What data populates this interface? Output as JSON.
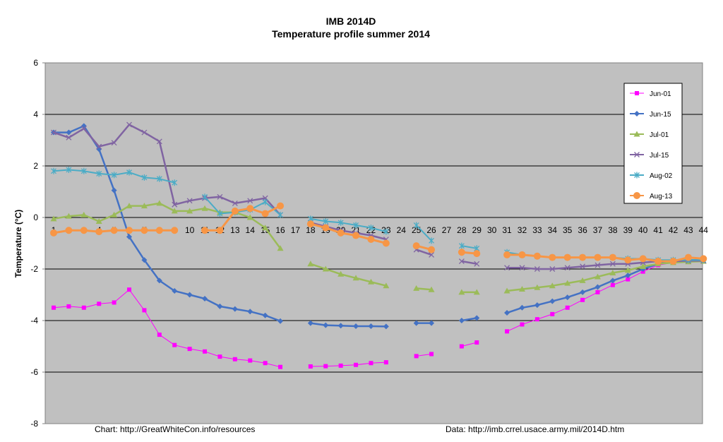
{
  "chart_data": {
    "type": "line",
    "title": "IMB 2014D",
    "subtitle": "Temperature profile summer 2014",
    "ylabel": "Temperature (°C)",
    "ylim": [
      -8,
      6
    ],
    "yticks": [
      6,
      4,
      2,
      0,
      -2,
      -4,
      -6,
      -8
    ],
    "x": [
      1,
      2,
      3,
      4,
      5,
      6,
      7,
      8,
      9,
      10,
      11,
      12,
      13,
      14,
      15,
      16,
      17,
      18,
      19,
      20,
      21,
      22,
      23,
      24,
      25,
      26,
      27,
      28,
      29,
      30,
      31,
      32,
      33,
      34,
      35,
      36,
      37,
      38,
      39,
      40,
      41,
      42,
      43,
      44
    ],
    "grid": true,
    "legend_position": "right",
    "background_color": "#c0c0c0",
    "series": [
      {
        "name": "Jun-01",
        "color": "#ff00ff",
        "marker": "square",
        "values": [
          -3.5,
          -3.45,
          -3.5,
          -3.35,
          -3.3,
          -2.8,
          -3.6,
          -4.55,
          -4.95,
          -5.1,
          -5.2,
          -5.4,
          -5.5,
          -5.55,
          -5.65,
          -5.8,
          null,
          -5.78,
          -5.77,
          -5.75,
          -5.72,
          -5.65,
          -5.62,
          null,
          -5.38,
          -5.3,
          null,
          -5.0,
          -4.85,
          null,
          -4.42,
          -4.15,
          -3.95,
          -3.75,
          -3.5,
          -3.2,
          -2.9,
          -2.62,
          -2.4,
          -2.1,
          -1.85,
          -1.75,
          -1.68,
          -1.65
        ]
      },
      {
        "name": "Jun-15",
        "color": "#4472c4",
        "marker": "diamond",
        "values": [
          3.3,
          3.3,
          3.55,
          2.65,
          1.05,
          -0.75,
          -1.65,
          -2.45,
          -2.85,
          -3.0,
          -3.15,
          -3.45,
          -3.55,
          -3.65,
          -3.8,
          -4.02,
          null,
          -4.1,
          -4.18,
          -4.2,
          -4.22,
          -4.22,
          -4.23,
          null,
          -4.1,
          -4.1,
          null,
          -4.0,
          -3.9,
          null,
          -3.7,
          -3.5,
          -3.4,
          -3.25,
          -3.1,
          -2.9,
          -2.7,
          -2.45,
          -2.25,
          -2.0,
          -1.8,
          -1.7,
          -1.65,
          -1.65
        ]
      },
      {
        "name": "Jul-01",
        "color": "#9bbb59",
        "marker": "triangle",
        "values": [
          -0.05,
          0.05,
          0.1,
          -0.15,
          0.1,
          0.45,
          0.45,
          0.55,
          0.25,
          0.25,
          0.35,
          0.2,
          0.2,
          0.0,
          -0.4,
          -1.2,
          null,
          -1.8,
          -2.0,
          -2.2,
          -2.35,
          -2.5,
          -2.65,
          null,
          -2.75,
          -2.8,
          null,
          -2.9,
          -2.9,
          null,
          -2.85,
          -2.78,
          -2.72,
          -2.65,
          -2.55,
          -2.45,
          -2.3,
          -2.15,
          -2.05,
          -1.9,
          -1.8,
          -1.75,
          -1.72,
          -1.7
        ]
      },
      {
        "name": "Jul-15",
        "color": "#8064a2",
        "marker": "x",
        "values": [
          3.3,
          3.1,
          3.45,
          2.75,
          2.9,
          3.6,
          3.3,
          2.95,
          0.5,
          0.65,
          0.75,
          0.8,
          0.55,
          0.65,
          0.75,
          0.1,
          null,
          -0.2,
          -0.35,
          -0.5,
          -0.6,
          -0.7,
          -0.85,
          null,
          -1.25,
          -1.45,
          null,
          -1.7,
          -1.8,
          null,
          -1.95,
          -1.95,
          -2.0,
          -2.0,
          -1.95,
          -1.9,
          -1.85,
          -1.8,
          -1.8,
          -1.75,
          -1.7,
          -1.7,
          -1.68,
          -1.68
        ]
      },
      {
        "name": "Aug-02",
        "color": "#4bacc6",
        "marker": "star",
        "values": [
          1.8,
          1.85,
          1.8,
          1.7,
          1.65,
          1.75,
          1.55,
          1.5,
          1.35,
          null,
          0.8,
          0.15,
          0.2,
          0.3,
          0.6,
          0.1,
          null,
          -0.05,
          -0.15,
          -0.2,
          -0.3,
          -0.4,
          -0.55,
          null,
          -0.3,
          -0.9,
          null,
          -1.1,
          -1.2,
          null,
          -1.35,
          -1.45,
          -1.5,
          -1.55,
          -1.55,
          -1.55,
          -1.55,
          -1.55,
          -1.6,
          -1.6,
          -1.65,
          -1.65,
          -1.65,
          -1.65
        ]
      },
      {
        "name": "Aug-13",
        "color": "#f79646",
        "marker": "circle",
        "values": [
          -0.6,
          -0.5,
          -0.5,
          -0.55,
          -0.5,
          -0.5,
          -0.5,
          -0.5,
          -0.5,
          null,
          -0.5,
          -0.5,
          0.25,
          0.35,
          0.15,
          0.45,
          null,
          -0.25,
          -0.4,
          -0.6,
          -0.7,
          -0.85,
          -1.0,
          null,
          -1.1,
          -1.25,
          null,
          -1.35,
          -1.4,
          null,
          -1.45,
          -1.45,
          -1.5,
          -1.55,
          -1.55,
          -1.55,
          -1.55,
          -1.55,
          -1.65,
          -1.6,
          -1.7,
          -1.7,
          -1.55,
          -1.6
        ]
      }
    ]
  },
  "footer": {
    "left": "Chart: http://GreatWhiteCon.info/resources",
    "right": "Data:  http://imb.crrel.usace.army.mil/2014D.htm"
  }
}
